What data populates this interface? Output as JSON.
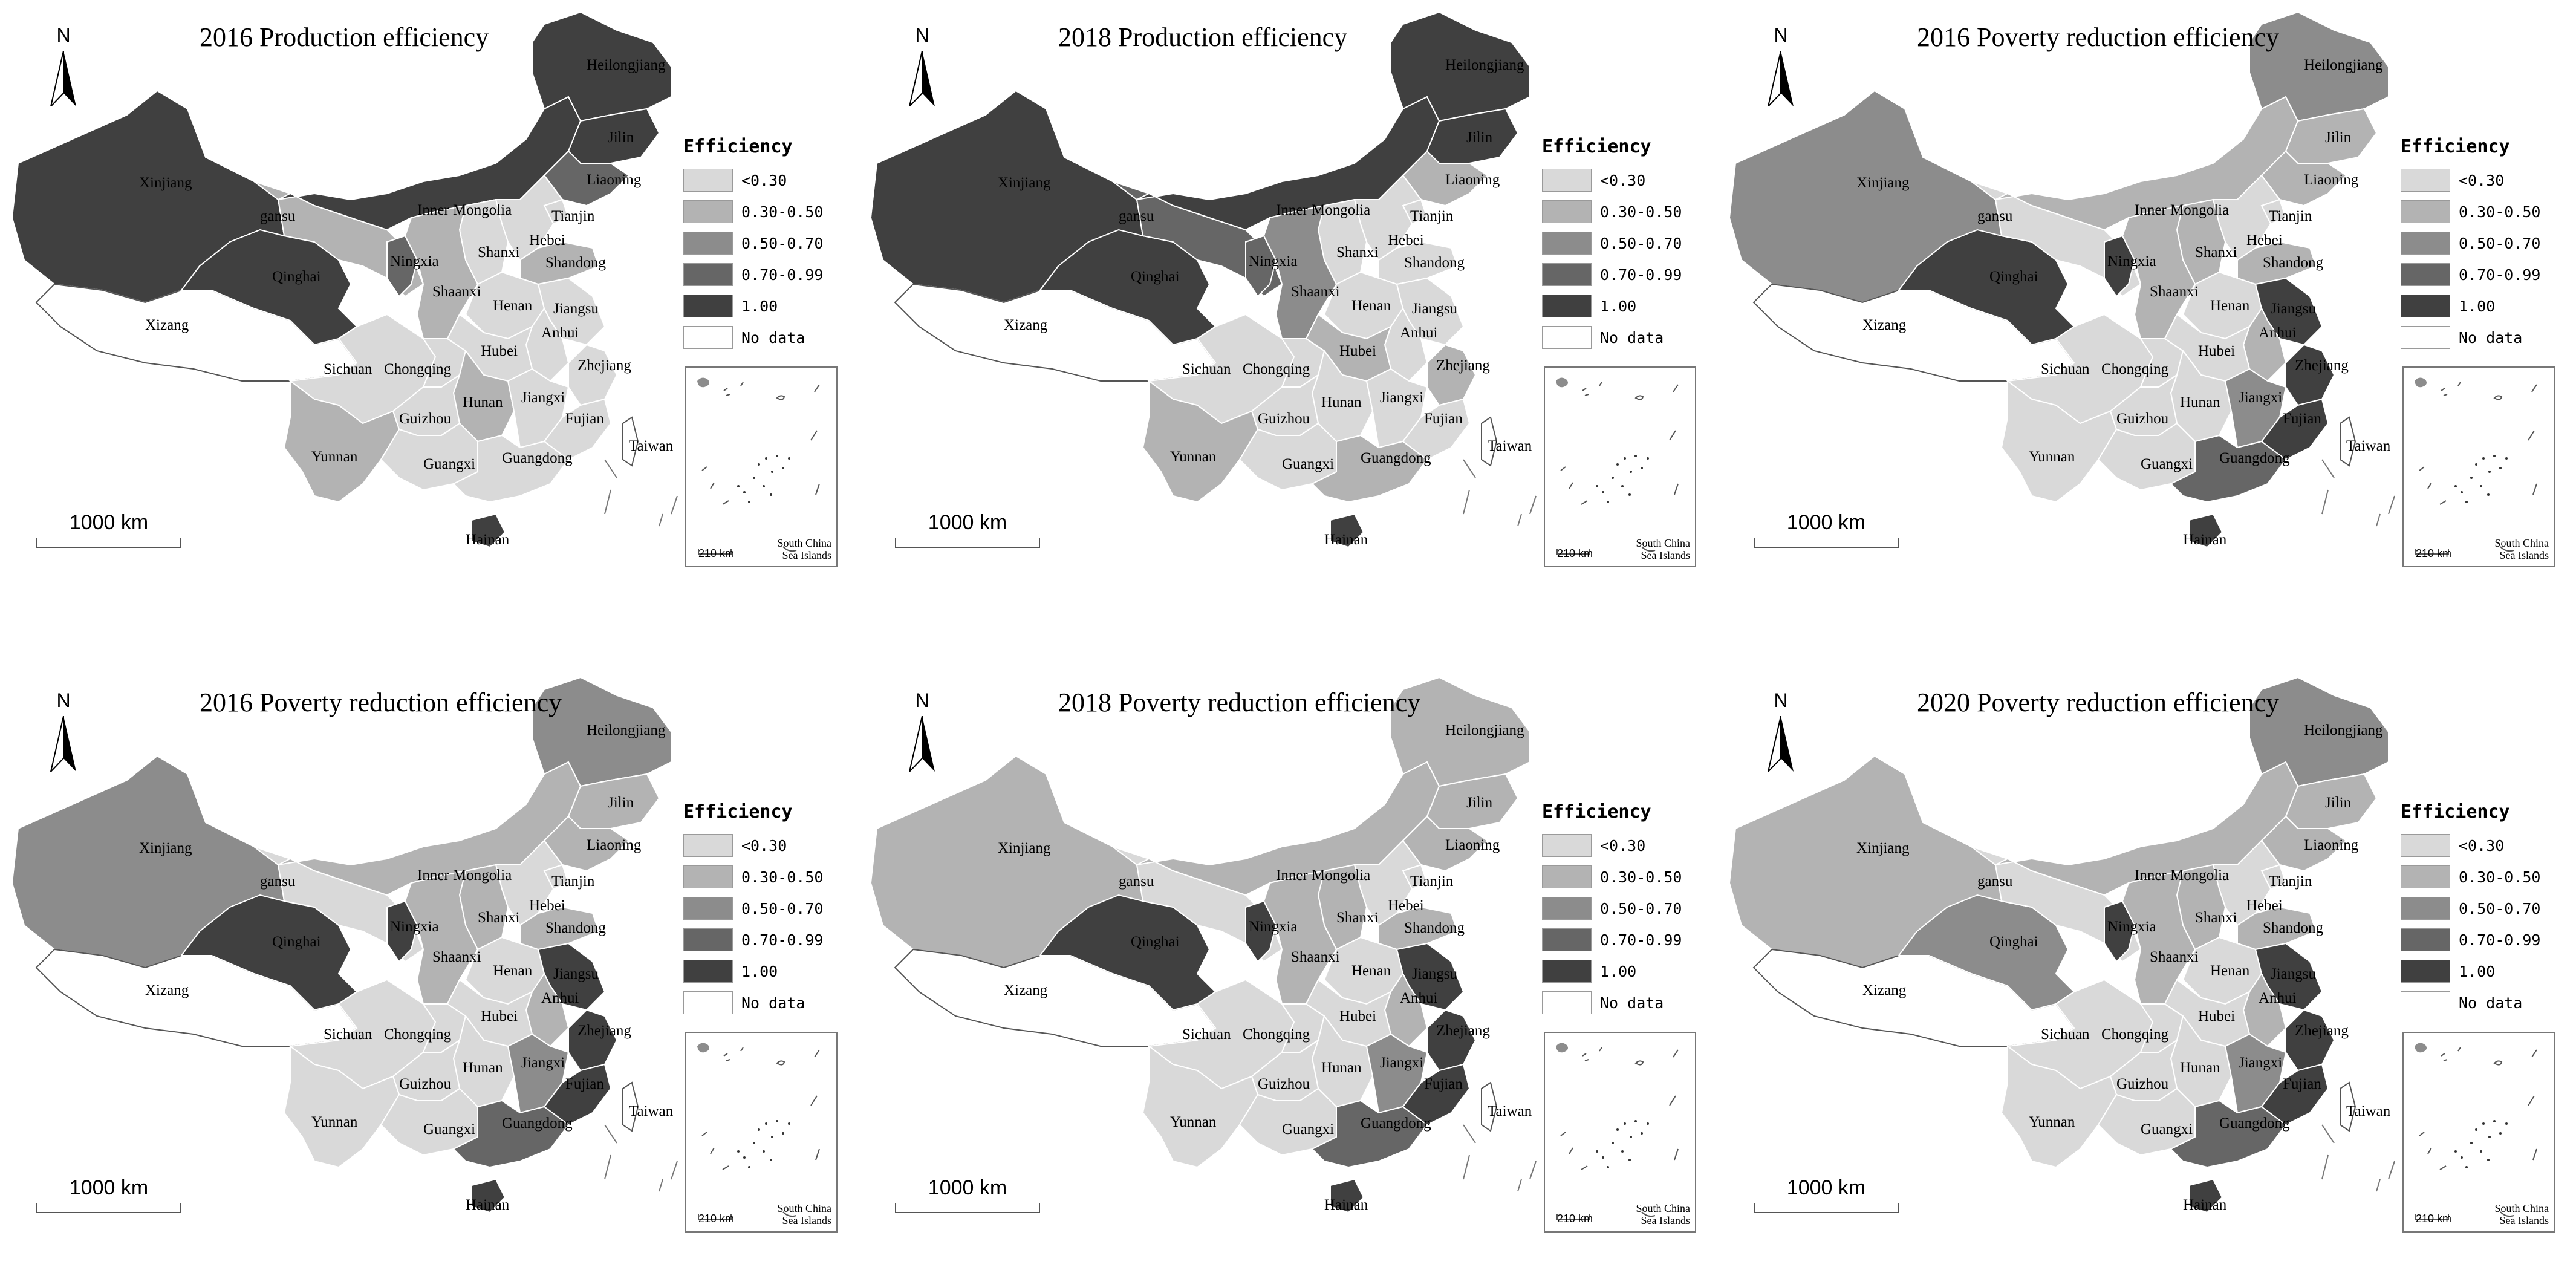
{
  "legend": {
    "title": "Efficiency",
    "classes": [
      {
        "label": "<0.30",
        "color": "#d9d9d9"
      },
      {
        "label": "0.30-0.50",
        "color": "#b3b3b3"
      },
      {
        "label": "0.50-0.70",
        "color": "#8c8c8c"
      },
      {
        "label": "0.70-0.99",
        "color": "#666666"
      },
      {
        "label": "1.00",
        "color": "#404040"
      },
      {
        "label": "No data",
        "color": "#ffffff"
      }
    ]
  },
  "north_label": "N",
  "scale_label": "1000 km",
  "inset": {
    "scale_label": "210 km",
    "label_line1": "South China",
    "label_line2": "Sea Islands"
  },
  "province_names": {
    "xinjiang": "Xinjiang",
    "xizang": "Xizang",
    "qinghai": "Qinghai",
    "gansu": "gansu",
    "nmongol": "Inner Mongolia",
    "heilongjiang": "Heilongjiang",
    "jilin": "Jilin",
    "liaoning": "Liaoning",
    "tianjin": "Tianjin",
    "hebei": "Hebei",
    "shanxi": "Shanxi",
    "shandong": "Shandong",
    "ningxia": "Ningxia",
    "shaanxi": "Shaanxi",
    "henan": "Henan",
    "jiangsu": "Jiangsu",
    "anhui": "Anhui",
    "sichuan": "Sichuan",
    "chongqing": "Chongqing",
    "hubei": "Hubei",
    "zhejiang": "Zhejiang",
    "hunan": "Hunan",
    "jiangxi": "Jiangxi",
    "guizhou": "Guizhou",
    "fujian": "Fujian",
    "taiwan": "Taiwan",
    "yunnan": "Yunnan",
    "guangxi": "Guangxi",
    "guangdong": "Guangdong",
    "hainan": "Hainan"
  },
  "panels": [
    {
      "title": "2016 Production efficiency",
      "classes": {
        "xinjiang": 5,
        "xizang": 6,
        "qinghai": 5,
        "gansu": 2,
        "nmongol": 5,
        "heilongjiang": 5,
        "jilin": 5,
        "liaoning": 4,
        "tianjin": 1,
        "hebei": 1,
        "shanxi": 1,
        "shandong": 2,
        "ningxia": 4,
        "shaanxi": 2,
        "henan": 1,
        "jiangsu": 1,
        "anhui": 1,
        "sichuan": 1,
        "chongqing": 1,
        "hubei": 1,
        "zhejiang": 1,
        "hunan": 2,
        "jiangxi": 1,
        "guizhou": 1,
        "fujian": 1,
        "taiwan": 6,
        "yunnan": 2,
        "guangxi": 1,
        "guangdong": 1,
        "hainan": 5
      }
    },
    {
      "title": "2018 Production efficiency",
      "classes": {
        "xinjiang": 5,
        "xizang": 6,
        "qinghai": 5,
        "gansu": 4,
        "nmongol": 5,
        "heilongjiang": 5,
        "jilin": 5,
        "liaoning": 2,
        "tianjin": 1,
        "hebei": 1,
        "shanxi": 1,
        "shandong": 1,
        "ningxia": 4,
        "shaanxi": 3,
        "henan": 1,
        "jiangsu": 1,
        "anhui": 1,
        "sichuan": 1,
        "chongqing": 1,
        "hubei": 2,
        "zhejiang": 2,
        "hunan": 1,
        "jiangxi": 1,
        "guizhou": 1,
        "fujian": 1,
        "taiwan": 6,
        "yunnan": 2,
        "guangxi": 1,
        "guangdong": 2,
        "hainan": 5
      }
    },
    {
      "title": "2016 Poverty reduction efficiency",
      "classes": {
        "xinjiang": 3,
        "xizang": 6,
        "qinghai": 5,
        "gansu": 1,
        "nmongol": 2,
        "heilongjiang": 3,
        "jilin": 2,
        "liaoning": 2,
        "tianjin": 1,
        "hebei": 1,
        "shanxi": 2,
        "shandong": 2,
        "ningxia": 5,
        "shaanxi": 2,
        "henan": 1,
        "jiangsu": 5,
        "anhui": 2,
        "sichuan": 1,
        "chongqing": 1,
        "hubei": 1,
        "zhejiang": 5,
        "hunan": 1,
        "jiangxi": 3,
        "guizhou": 1,
        "fujian": 5,
        "taiwan": 6,
        "yunnan": 1,
        "guangxi": 1,
        "guangdong": 4,
        "hainan": 5
      }
    },
    {
      "title": "2016 Poverty reduction efficiency",
      "classes": {
        "xinjiang": 3,
        "xizang": 6,
        "qinghai": 5,
        "gansu": 1,
        "nmongol": 2,
        "heilongjiang": 3,
        "jilin": 2,
        "liaoning": 2,
        "tianjin": 1,
        "hebei": 1,
        "shanxi": 2,
        "shandong": 2,
        "ningxia": 5,
        "shaanxi": 2,
        "henan": 1,
        "jiangsu": 5,
        "anhui": 2,
        "sichuan": 1,
        "chongqing": 1,
        "hubei": 1,
        "zhejiang": 5,
        "hunan": 1,
        "jiangxi": 3,
        "guizhou": 1,
        "fujian": 5,
        "taiwan": 6,
        "yunnan": 1,
        "guangxi": 1,
        "guangdong": 4,
        "hainan": 5
      }
    },
    {
      "title": "2018 Poverty reduction efficiency",
      "classes": {
        "xinjiang": 2,
        "xizang": 6,
        "qinghai": 5,
        "gansu": 1,
        "nmongol": 2,
        "heilongjiang": 2,
        "jilin": 2,
        "liaoning": 2,
        "tianjin": 1,
        "hebei": 1,
        "shanxi": 2,
        "shandong": 2,
        "ningxia": 5,
        "shaanxi": 2,
        "henan": 1,
        "jiangsu": 5,
        "anhui": 2,
        "sichuan": 1,
        "chongqing": 1,
        "hubei": 1,
        "zhejiang": 5,
        "hunan": 1,
        "jiangxi": 3,
        "guizhou": 1,
        "fujian": 5,
        "taiwan": 6,
        "yunnan": 1,
        "guangxi": 1,
        "guangdong": 4,
        "hainan": 5
      }
    },
    {
      "title": "2020 Poverty reduction efficiency",
      "classes": {
        "xinjiang": 2,
        "xizang": 6,
        "qinghai": 3,
        "gansu": 1,
        "nmongol": 2,
        "heilongjiang": 3,
        "jilin": 2,
        "liaoning": 2,
        "tianjin": 1,
        "hebei": 1,
        "shanxi": 2,
        "shandong": 2,
        "ningxia": 5,
        "shaanxi": 2,
        "henan": 1,
        "jiangsu": 5,
        "anhui": 2,
        "sichuan": 1,
        "chongqing": 1,
        "hubei": 1,
        "zhejiang": 5,
        "hunan": 1,
        "jiangxi": 3,
        "guizhou": 1,
        "fujian": 5,
        "taiwan": 6,
        "yunnan": 1,
        "guangxi": 1,
        "guangdong": 4,
        "hainan": 5
      }
    }
  ]
}
